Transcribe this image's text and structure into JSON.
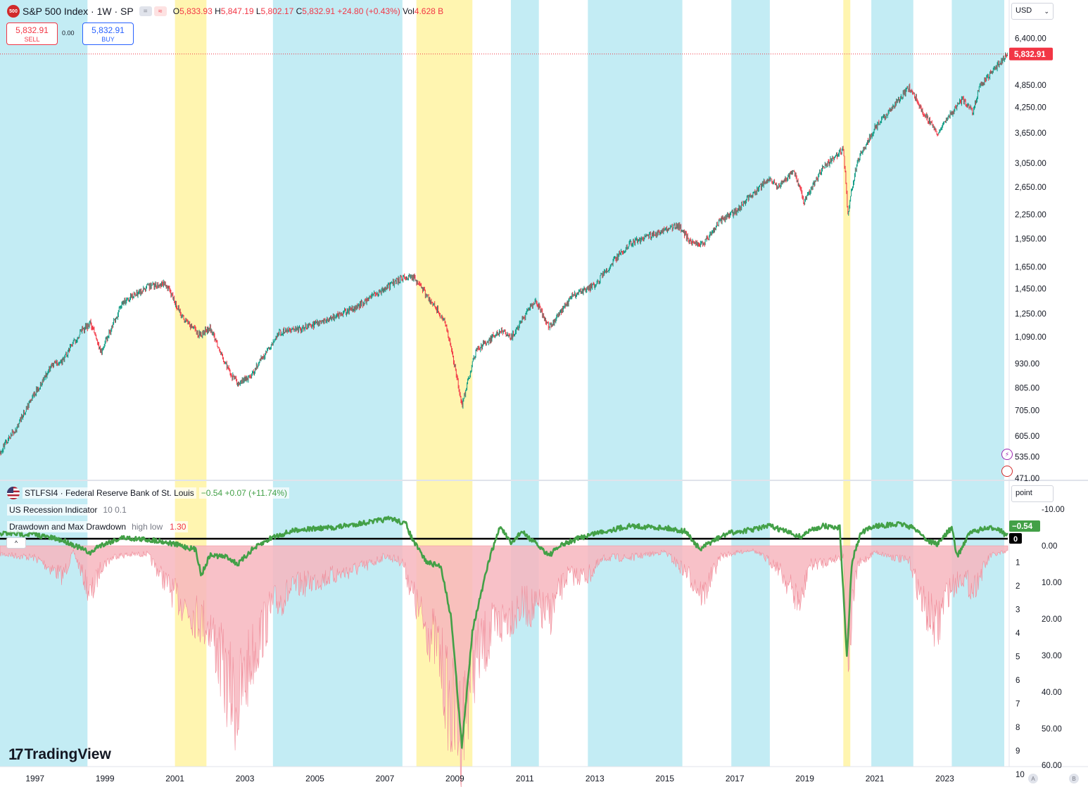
{
  "header": {
    "symbol_badge": "500",
    "title": "S&P 500 Index · 1W · SP",
    "tool_buttons": [
      "=",
      "≈"
    ],
    "ohlc": {
      "o_label": "O",
      "o": "5,833.93",
      "h_label": "H",
      "h": "5,847.19",
      "l_label": "L",
      "l": "5,802.17",
      "c_label": "C",
      "c": "5,832.91",
      "change": "+24.80 (+0.43%)",
      "vol_label": "Vol",
      "vol": "4.628 B"
    }
  },
  "trade": {
    "sell_price": "5,832.91",
    "sell_label": "SELL",
    "spread": "0.00",
    "buy_price": "5,832.91",
    "buy_label": "BUY"
  },
  "currency_select": "USD",
  "scale_select": "point",
  "indicator_legend": {
    "series_title": "STLFSI4 · Federal Reserve Bank of St. Louis",
    "series_value": "−0.54 +0.07 (+11.74%)",
    "recession_label": "US Recession Indicator",
    "recession_params": "10 0.1",
    "drawdown_label": "Drawdown and Max Drawdown",
    "drawdown_params": "high low",
    "drawdown_value": "1.30"
  },
  "collapse_button": "^",
  "logo_text": "TradingView",
  "logo_mark": "17",
  "corner_buttons": [
    "A",
    "B"
  ],
  "colors": {
    "up": "#089981",
    "down": "#f23645",
    "fsi_line": "#43a047",
    "blue_band": "#c3ecf4",
    "yellow_band": "#fff5b0",
    "drawdown_pink": "#f7b6be",
    "drawdown_tan": "#f5a87a"
  },
  "chart_data": [
    {
      "type": "line",
      "title": "S&P 500 Index · 1W · SP",
      "scale": "log",
      "x_axis": {
        "range": [
          1996.0,
          2024.8
        ],
        "tick_labels": [
          "1997",
          "1999",
          "2001",
          "2003",
          "2005",
          "2007",
          "2009",
          "2011",
          "2013",
          "2015",
          "2017",
          "2019",
          "2021",
          "2023"
        ],
        "tick_positions": [
          1997,
          1999,
          2001,
          2003,
          2005,
          2007,
          2009,
          2011,
          2013,
          2015,
          2017,
          2019,
          2021,
          2023
        ]
      },
      "y_axis": {
        "range": [
          471,
          6800
        ],
        "tick_labels": [
          "6,400.00",
          "4,850.00",
          "4,250.00",
          "3,650.00",
          "3,050.00",
          "2,650.00",
          "2,250.00",
          "1,950.00",
          "1,650.00",
          "1,450.00",
          "1,250.00",
          "1,090.00",
          "930.00",
          "805.00",
          "705.00",
          "605.00",
          "535.00",
          "471.00"
        ],
        "tick_values": [
          6400,
          4850,
          4250,
          3650,
          3050,
          2650,
          2250,
          1950,
          1650,
          1450,
          1250,
          1090,
          930,
          805,
          705,
          605,
          535,
          471
        ]
      },
      "last_price_label": "5,832.91",
      "last_price": 5832.91,
      "series": [
        {
          "x": [
            1996.0,
            1996.5,
            1997.0,
            1997.5,
            1997.8,
            1998.3,
            1998.6,
            1998.9,
            1999.5,
            2000.2,
            2000.7,
            2001.2,
            2001.7,
            2002.0,
            2002.5,
            2002.8,
            2003.2,
            2004.0,
            2004.6,
            2005.5,
            2006.2,
            2007.0,
            2007.4,
            2007.8,
            2008.3,
            2008.7,
            2009.2,
            2009.6,
            2010.3,
            2010.6,
            2011.3,
            2011.7,
            2012.4,
            2013.0,
            2014.0,
            2015.4,
            2015.7,
            2016.1,
            2016.6,
            2017.0,
            2018.0,
            2018.2,
            2018.7,
            2018.98,
            2019.5,
            2020.1,
            2020.23,
            2020.5,
            2021.0,
            2022.0,
            2022.4,
            2022.8,
            2023.0,
            2023.5,
            2023.8,
            2024.0,
            2024.5,
            2024.8
          ],
          "y": [
            550,
            640,
            780,
            920,
            950,
            1120,
            1180,
            990,
            1330,
            1460,
            1500,
            1230,
            1100,
            1150,
            900,
            820,
            870,
            1120,
            1140,
            1220,
            1300,
            1450,
            1530,
            1560,
            1350,
            1200,
            720,
            1000,
            1130,
            1080,
            1350,
            1150,
            1400,
            1480,
            1900,
            2110,
            1920,
            1890,
            2180,
            2280,
            2800,
            2650,
            2900,
            2420,
            2950,
            3320,
            2240,
            3100,
            3750,
            4790,
            4100,
            3600,
            3900,
            4450,
            4150,
            4800,
            5450,
            5832.91
          ]
        }
      ]
    },
    {
      "type": "area",
      "title": "STLFSI4 · Federal Reserve Bank of St. Louis",
      "x_axis": {
        "range": [
          1996.0,
          2024.8
        ]
      },
      "y_axis_fsi": {
        "tick_labels": [
          "-10.00",
          "0.00",
          "10.00",
          "20.00",
          "30.00",
          "40.00",
          "50.00",
          "60.00"
        ],
        "tick_values": [
          -10,
          0,
          10,
          20,
          30,
          40,
          50,
          60
        ]
      },
      "y_axis_drawdown": {
        "tick_labels": [
          "1",
          "2",
          "3",
          "4",
          "5",
          "6",
          "7",
          "8",
          "9",
          "10"
        ],
        "tick_values": [
          1,
          2,
          3,
          4,
          5,
          6,
          7,
          8,
          9,
          10
        ]
      },
      "last_value_label": "−0.54",
      "zero_label": "0",
      "recession_bands": [
        [
          2001.0,
          2001.9
        ],
        [
          2007.9,
          2009.5
        ],
        [
          2020.1,
          2020.3
        ]
      ],
      "expansion_bands": [
        [
          1996.0,
          1998.5
        ],
        [
          2003.8,
          2007.5
        ],
        [
          2010.6,
          2011.4
        ],
        [
          2012.8,
          2015.5
        ],
        [
          2016.9,
          2018.0
        ],
        [
          2020.9,
          2022.1
        ],
        [
          2023.2,
          2024.7
        ]
      ],
      "series": [
        {
          "name": "STLFSI4",
          "x": [
            1996.0,
            1997.0,
            1997.8,
            1998.0,
            1998.6,
            1998.8,
            1999.5,
            2000.5,
            2001.0,
            2001.6,
            2001.75,
            2002.0,
            2002.5,
            2002.8,
            2003.2,
            2003.8,
            2004.5,
            2005.5,
            2006.5,
            2007.2,
            2007.6,
            2007.8,
            2008.2,
            2008.6,
            2008.9,
            2009.2,
            2009.5,
            2010.0,
            2010.3,
            2010.6,
            2010.9,
            2011.7,
            2012.0,
            2012.5,
            2013.0,
            2014.0,
            2015.0,
            2015.6,
            2016.0,
            2016.3,
            2016.8,
            2017.5,
            2018.0,
            2018.9,
            2019.1,
            2019.5,
            2020.0,
            2020.2,
            2020.35,
            2020.6,
            2021.0,
            2021.8,
            2022.2,
            2022.5,
            2022.8,
            2023.0,
            2023.2,
            2023.35,
            2023.7,
            2024.0,
            2024.5,
            2024.8
          ],
          "y": [
            -1.5,
            -1.2,
            0.5,
            1.2,
            4.0,
            2.0,
            -0.3,
            0.5,
            1.5,
            3.0,
            10.0,
            4.5,
            5.0,
            7.0,
            3.0,
            -0.5,
            -2.5,
            -3.0,
            -4.5,
            -5.5,
            -4.0,
            0.5,
            6.5,
            7.5,
            22.0,
            57.0,
            25.0,
            5.0,
            -3.5,
            1.5,
            -2.0,
            4.5,
            2.0,
            0.0,
            -1.5,
            -3.5,
            -3.0,
            -2.0,
            3.0,
            1.0,
            -1.5,
            -2.5,
            -3.5,
            -0.5,
            -2.0,
            -3.5,
            -3.0,
            32.0,
            6.0,
            -1.5,
            -3.5,
            -4.0,
            -2.5,
            0.5,
            1.5,
            -1.0,
            -3.0,
            5.0,
            -1.5,
            -2.5,
            -3.0,
            -0.54
          ]
        },
        {
          "name": "Drawdown",
          "x": [
            1996.0,
            1997.0,
            1997.8,
            1998.1,
            1998.6,
            1998.9,
            1999.3,
            2000.2,
            2001.0,
            2001.6,
            2002.0,
            2002.5,
            2002.8,
            2003.2,
            2003.8,
            2004.5,
            2005.5,
            2006.5,
            2007.0,
            2007.5,
            2008.0,
            2008.5,
            2008.9,
            2009.2,
            2009.5,
            2010.0,
            2010.5,
            2011.0,
            2011.7,
            2012.2,
            2012.8,
            2013.3,
            2014.0,
            2015.0,
            2015.7,
            2016.1,
            2016.6,
            2017.5,
            2018.2,
            2018.9,
            2019.1,
            2019.6,
            2020.1,
            2020.23,
            2020.5,
            2021.0,
            2022.0,
            2022.4,
            2022.8,
            2023.0,
            2023.5,
            2023.8,
            2024.3,
            2024.8
          ],
          "y": [
            0.4,
            0.6,
            1.5,
            0.3,
            2.5,
            1.0,
            0.5,
            0.4,
            2.5,
            3.5,
            4.0,
            7.0,
            8.0,
            5.5,
            3.0,
            2.0,
            1.5,
            1.0,
            0.5,
            0.8,
            3.5,
            5.0,
            8.5,
            9.0,
            6.0,
            4.5,
            3.5,
            3.0,
            3.5,
            1.5,
            1.5,
            0.6,
            0.6,
            0.3,
            1.5,
            2.5,
            0.5,
            0.2,
            1.0,
            3.0,
            1.0,
            0.8,
            0.5,
            5.5,
            1.0,
            0.3,
            0.8,
            3.0,
            4.2,
            2.5,
            1.5,
            2.2,
            0.5,
            0.3
          ]
        }
      ]
    }
  ]
}
